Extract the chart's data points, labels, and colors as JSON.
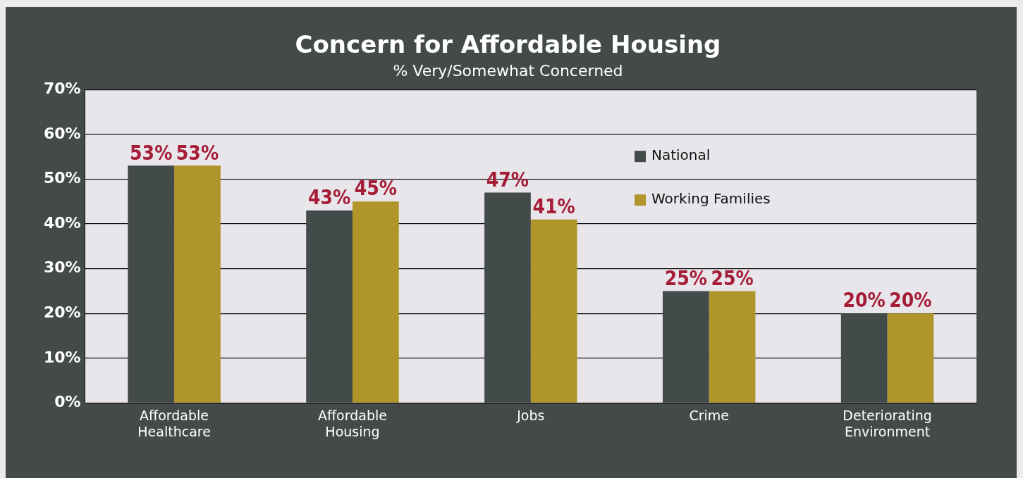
{
  "chart_data": {
    "type": "bar",
    "title": "Concern for Affordable Housing",
    "subtitle": "% Very/Somewhat Concerned",
    "categories": [
      "Affordable Healthcare",
      "Affordable Housing",
      "Jobs",
      "Crime",
      "Deteriorating Environment"
    ],
    "series": [
      {
        "name": "National",
        "color": "#434a4a",
        "values": [
          53,
          43,
          47,
          25,
          20
        ],
        "value_labels": [
          "53%",
          "43%",
          "47%",
          "25%",
          "20%"
        ]
      },
      {
        "name": "Working Families",
        "color": "#b0952a",
        "values": [
          53,
          45,
          41,
          25,
          20
        ],
        "value_labels": [
          "53%",
          "45%",
          "41%",
          "25%",
          "20%"
        ]
      }
    ],
    "ylim": [
      0,
      70
    ],
    "yticks": [
      {
        "value": 0,
        "label": "0%"
      },
      {
        "value": 10,
        "label": "10%"
      },
      {
        "value": 20,
        "label": "20%"
      },
      {
        "value": 30,
        "label": "30%"
      },
      {
        "value": 40,
        "label": "40%"
      },
      {
        "value": 50,
        "label": "50%"
      },
      {
        "value": 60,
        "label": "60%"
      },
      {
        "value": 70,
        "label": "70%"
      }
    ],
    "grid": "y",
    "legend": "top right"
  }
}
